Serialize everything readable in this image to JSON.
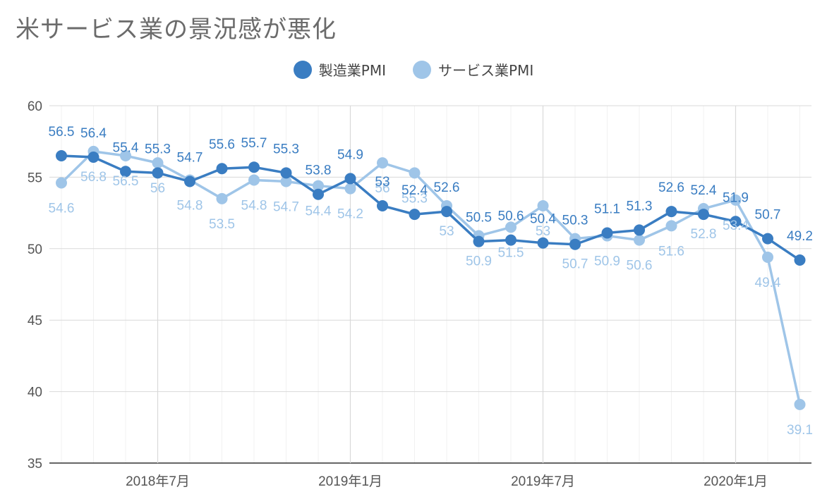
{
  "chart_data": {
    "type": "line",
    "title": "米サービス業の景況感が悪化",
    "xlabel": "",
    "ylabel": "",
    "ylim": [
      35,
      60
    ],
    "yticks": [
      35,
      40,
      45,
      50,
      55,
      60
    ],
    "x_tick_labels": [
      {
        "index": 3,
        "label": "2018年7月"
      },
      {
        "index": 9,
        "label": "2019年1月"
      },
      {
        "index": 15,
        "label": "2019年7月"
      },
      {
        "index": 21,
        "label": "2020年1月"
      }
    ],
    "grid": true,
    "legend_position": "top-center",
    "series": [
      {
        "name": "製造業PMI",
        "color": "#3a7dc2",
        "label_position": "above",
        "values": [
          56.5,
          56.4,
          55.4,
          55.3,
          54.7,
          55.6,
          55.7,
          55.3,
          53.8,
          54.9,
          53.0,
          52.4,
          52.6,
          50.5,
          50.6,
          50.4,
          50.3,
          51.1,
          51.3,
          52.6,
          52.4,
          51.9,
          50.7,
          49.2
        ],
        "labels": [
          "56.5",
          "56.4",
          "55.4",
          "55.3",
          "54.7",
          "55.6",
          "55.7",
          "55.3",
          "53.8",
          "54.9",
          "53",
          "52.4",
          "52.6",
          "50.5",
          "50.6",
          "50.4",
          "50.3",
          "51.1",
          "51.3",
          "52.6",
          "52.4",
          "51.9",
          "50.7",
          "49.2"
        ]
      },
      {
        "name": "サービス業PMI",
        "color": "#9fc5e8",
        "label_position": "below",
        "values": [
          54.6,
          56.8,
          56.5,
          56.0,
          54.8,
          53.5,
          54.8,
          54.7,
          54.4,
          54.2,
          56.0,
          55.3,
          53.0,
          50.9,
          51.5,
          53.0,
          50.7,
          50.9,
          50.6,
          51.6,
          52.8,
          53.4,
          49.4,
          39.1
        ],
        "labels": [
          "54.6",
          "56.8",
          "56.5",
          "56",
          "54.8",
          "53.5",
          "54.8",
          "54.7",
          "54.4",
          "54.2",
          "56",
          "55.3",
          "53",
          "50.9",
          "51.5",
          "53",
          "50.7",
          "50.9",
          "50.6",
          "51.6",
          "52.8",
          "53.4",
          "49.4",
          "39.1"
        ]
      }
    ]
  }
}
